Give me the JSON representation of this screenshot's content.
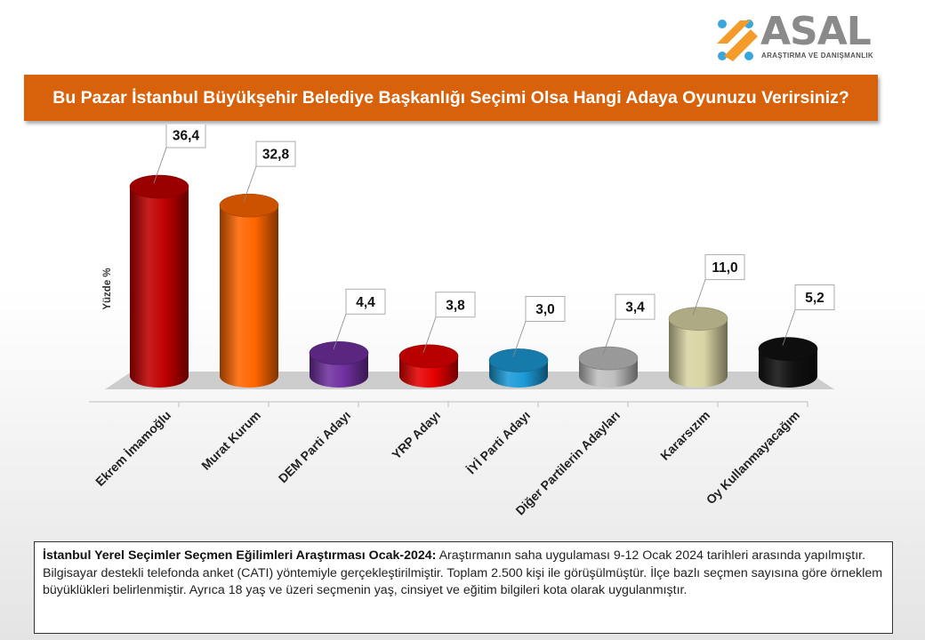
{
  "logo": {
    "name": "ASAL",
    "subtitle": "ARAŞTIRMA VE DANIŞMANLIK"
  },
  "title": "Bu Pazar İstanbul Büyükşehir Belediye Başkanlığı Seçimi Olsa Hangi Adaya Oyunuzu Verirsiniz?",
  "chart_data": {
    "type": "bar",
    "ylabel": "Yüzde  %",
    "categories": [
      "Ekrem İmamoğlu",
      "Murat Kurum",
      "DEM Parti Adayı",
      "YRP Adayı",
      "İYİ Parti Adayı",
      "Diğer Partilerin Adayları",
      "Kararsızım",
      "Oy Kullanmayacağım"
    ],
    "values": [
      36.4,
      32.8,
      4.4,
      3.8,
      3.0,
      3.4,
      11.0,
      5.2
    ],
    "value_labels": [
      "36,4",
      "32,8",
      "4,4",
      "3,8",
      "3,0",
      "3,4",
      "11,0",
      "5,2"
    ],
    "colors": [
      "#c00000",
      "#ff6600",
      "#7030a0",
      "#e60000",
      "#1c9ad6",
      "#bfbfbf",
      "#d9d4a4",
      "#111111"
    ],
    "ylim": [
      0,
      40
    ],
    "grid": false,
    "legend": "none"
  },
  "note": {
    "heading": "İstanbul Yerel Seçimler Seçmen Eğilimleri Araştırması Ocak-2024:",
    "body": " Araştırmanın saha uygulaması 9-12 Ocak 2024 tarihleri arasında yapılmıştır. Bilgisayar destekli telefonda anket (CATI) yöntemiyle gerçekleştirilmiştir. Toplam 2.500 kişi ile görüşülmüştür. İlçe bazlı seçmen sayısına göre örneklem büyüklükleri belirlenmiştir. Ayrıca 18 yaş ve üzeri seçmenin yaş, cinsiyet ve eğitim bilgileri kota olarak uygulanmıştır."
  }
}
